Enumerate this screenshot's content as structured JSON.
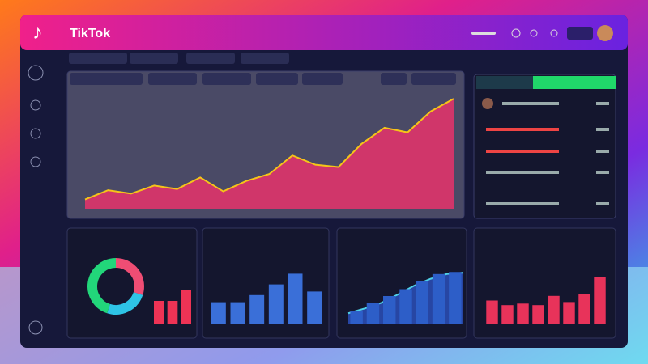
{
  "header": {
    "title": "TikTok"
  },
  "charts": [
    {
      "type": "area",
      "color": "#e8336b",
      "line_color": "#f5c518",
      "ylim": [
        0,
        100
      ],
      "values": [
        8,
        16,
        13,
        20,
        17,
        27,
        15,
        24,
        30,
        46,
        38,
        36,
        56,
        70,
        66,
        84,
        95
      ]
    },
    {
      "type": "donut",
      "values": [
        30,
        25,
        45
      ],
      "colors": [
        "#ef4d74",
        "#2ec4e6",
        "#22d67a"
      ]
    },
    {
      "type": "bar",
      "color": "#ee3355",
      "ylim": [
        0,
        100
      ],
      "values": [
        40,
        40,
        60
      ]
    },
    {
      "type": "bar",
      "color": "#3a6fd8",
      "ylim": [
        0,
        100
      ],
      "values": [
        30,
        30,
        40,
        55,
        70,
        45
      ]
    },
    {
      "type": "area",
      "color": "#2a4fb8",
      "line_color": "#4fd0e8",
      "ylim": [
        0,
        100
      ],
      "values": [
        15,
        22,
        30,
        42,
        55,
        65,
        72,
        74
      ]
    },
    {
      "type": "bar",
      "color": "#2d5ec8",
      "ylim": [
        0,
        100
      ],
      "values": [
        18,
        30,
        40,
        50,
        62,
        72,
        75
      ]
    },
    {
      "type": "bar",
      "color": "#e8335a",
      "ylim": [
        0,
        100
      ],
      "values": [
        30,
        24,
        26,
        24,
        36,
        28,
        38,
        60
      ]
    }
  ]
}
